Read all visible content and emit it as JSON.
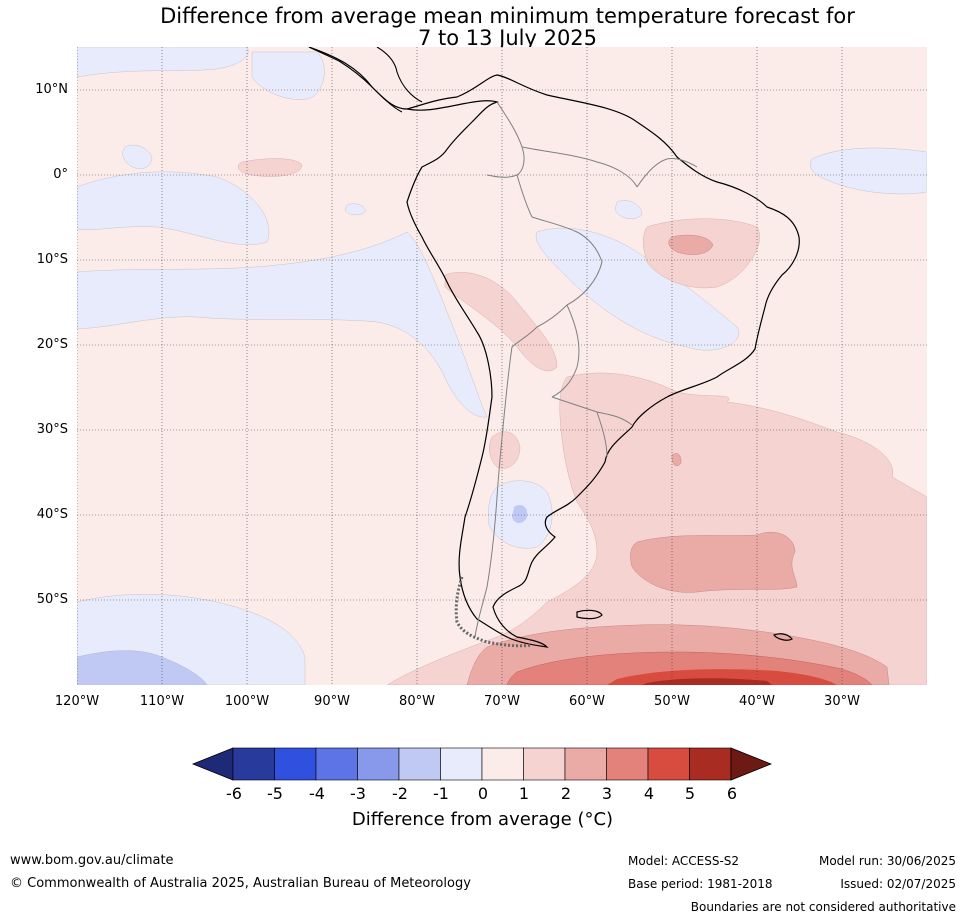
{
  "title": {
    "line1": "Difference from average mean minimum temperature forecast for",
    "line2": "7 to 13 July 2025"
  },
  "map": {
    "lat_labels": [
      "10°N",
      "0°",
      "10°S",
      "20°S",
      "30°S",
      "40°S",
      "50°S"
    ],
    "lon_labels": [
      "120°W",
      "110°W",
      "100°W",
      "90°W",
      "80°W",
      "70°W",
      "60°W",
      "50°W",
      "40°W",
      "30°W"
    ],
    "region": "South America",
    "gridlines": true
  },
  "colorbar": {
    "ticks": [
      "-6",
      "-5",
      "-4",
      "-3",
      "-2",
      "-1",
      "0",
      "1",
      "2",
      "3",
      "4",
      "5",
      "6"
    ],
    "colors": [
      "#283a9c",
      "#3050e0",
      "#5c74e6",
      "#8899ec",
      "#c0c8f4",
      "#e8ebfb",
      "#fbecea",
      "#f4d3d1",
      "#eaaaa6",
      "#e3827b",
      "#d84c40",
      "#a92c22"
    ],
    "under_color": "#1e2a78",
    "over_color": "#6e1a14",
    "label": "Difference from average (°C)"
  },
  "footer": {
    "website": "www.bom.gov.au/climate",
    "copyright": "© Commonwealth of Australia 2025, Australian Bureau of Meteorology",
    "model": "Model: ACCESS-S2",
    "base_period": "Base period: 1981-2018",
    "model_run": "Model run: 30/06/2025",
    "issued": "Issued: 02/07/2025",
    "disclaimer": "Boundaries are not considered authoritative"
  }
}
